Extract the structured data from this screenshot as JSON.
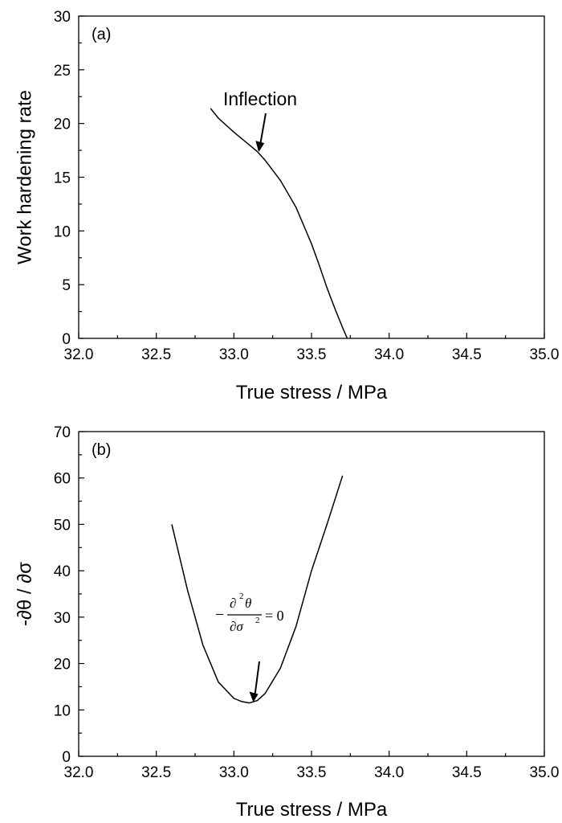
{
  "chart_data": [
    {
      "panel": "(a)",
      "type": "line",
      "xlabel": "True stress / MPa",
      "ylabel": "Work hardening rate",
      "xlim": [
        32.0,
        35.0
      ],
      "ylim": [
        0,
        30
      ],
      "xticks": [
        "32.0",
        "32.5",
        "33.0",
        "33.5",
        "34.0",
        "34.5",
        "35.0"
      ],
      "yticks": [
        "0",
        "5",
        "10",
        "15",
        "20",
        "25",
        "30"
      ],
      "series": [
        {
          "x": [
            32.85,
            32.9,
            33.0,
            33.1,
            33.15,
            33.2,
            33.3,
            33.4,
            33.5,
            33.55,
            33.6,
            33.65,
            33.7,
            33.73
          ],
          "y": [
            21.4,
            20.5,
            19.2,
            18.0,
            17.4,
            16.6,
            14.7,
            12.2,
            8.8,
            6.8,
            4.7,
            2.8,
            1.0,
            0.0
          ]
        }
      ],
      "annotation": {
        "text": "Inflection",
        "x": 33.16,
        "y": 17.5
      },
      "grid": false
    },
    {
      "panel": "(b)",
      "type": "line",
      "xlabel": "True stress / MPa",
      "ylabel": "-∂θ / ∂σ",
      "xlim": [
        32.0,
        35.0
      ],
      "ylim": [
        0,
        70
      ],
      "xticks": [
        "32.0",
        "32.5",
        "33.0",
        "33.5",
        "34.0",
        "34.5",
        "35.0"
      ],
      "yticks": [
        "0",
        "10",
        "20",
        "30",
        "40",
        "50",
        "60",
        "70"
      ],
      "series": [
        {
          "x": [
            32.6,
            32.7,
            32.8,
            32.9,
            33.0,
            33.05,
            33.1,
            33.15,
            33.2,
            33.3,
            33.4,
            33.5,
            33.6,
            33.7
          ],
          "y": [
            50.0,
            36.0,
            24.0,
            16.0,
            12.5,
            11.8,
            11.5,
            12.0,
            13.5,
            19.0,
            28.0,
            40.0,
            50.0,
            60.5
          ]
        }
      ],
      "annotation": {
        "x": 33.12,
        "y": 11.5,
        "formula": {
          "minus": "−",
          "num_sym": "∂",
          "num_exp": "2",
          "num_var": "θ",
          "den_sym": "∂σ",
          "den_exp": "2",
          "rhs": "= 0"
        }
      },
      "grid": false
    }
  ]
}
